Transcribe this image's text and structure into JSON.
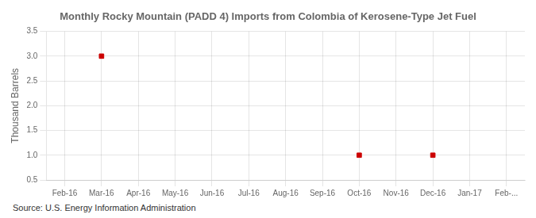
{
  "chart_data": {
    "type": "scatter",
    "title": "Monthly Rocky Mountain (PADD 4) Imports from Colombia of Kerosene-Type Jet Fuel",
    "ylabel": "Thousand Barrels",
    "source": "Source: U.S. Energy Information Administration",
    "categories": [
      "Feb-16",
      "Mar-16",
      "Apr-16",
      "May-16",
      "Jun-16",
      "Jul-16",
      "Aug-16",
      "Sep-16",
      "Oct-16",
      "Nov-16",
      "Dec-16",
      "Jan-17",
      "Feb-..."
    ],
    "values": [
      null,
      3.0,
      null,
      null,
      null,
      null,
      null,
      null,
      1.0,
      null,
      1.0,
      null,
      null
    ],
    "color": "#cc0000",
    "marker": "square",
    "ylim": [
      0.5,
      3.5
    ],
    "yticks": [
      0.5,
      {
        "value": 1,
        "label": "1.0"
      },
      1.5,
      {
        "value": 2,
        "label": "2.0"
      },
      2.5,
      {
        "value": 3,
        "label": "3.0"
      },
      3.5
    ],
    "grid": true
  }
}
